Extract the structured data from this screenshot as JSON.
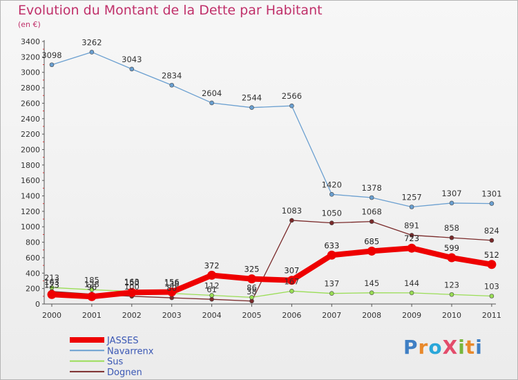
{
  "chart_data": {
    "type": "line",
    "title": "Evolution du Montant de la Dette par Habitant",
    "subtitle": "(en €)",
    "x": [
      "2000",
      "2001",
      "2002",
      "2003",
      "2004",
      "2005",
      "2006",
      "2007",
      "2008",
      "2009",
      "2010",
      "2011"
    ],
    "ylim": [
      0,
      3400
    ],
    "yticks": [
      0,
      200,
      400,
      600,
      800,
      1000,
      1200,
      1400,
      1600,
      1800,
      2000,
      2200,
      2400,
      2600,
      2800,
      3000,
      3200,
      3400
    ],
    "grid": false,
    "legend_position": "bottom-left",
    "series": [
      {
        "name": "JASSES",
        "color": "#ee0000",
        "values": [
          123,
          96,
          150,
          156,
          372,
          325,
          307,
          633,
          685,
          723,
          599,
          512
        ]
      },
      {
        "name": "Navarrenx",
        "color": "#6a9fd0",
        "values": [
          3098,
          3262,
          3043,
          2834,
          2604,
          2544,
          2566,
          1420,
          1378,
          1257,
          1307,
          1301
        ]
      },
      {
        "name": "Sus",
        "color": "#99dd55",
        "values": [
          213,
          185,
          163,
          138,
          112,
          86,
          167,
          137,
          145,
          144,
          123,
          103
        ]
      },
      {
        "name": "Dognen",
        "color": "#7a2a2a",
        "values": [
          163,
          128,
          100,
          80,
          61,
          38,
          1083,
          1050,
          1068,
          891,
          858,
          824
        ]
      }
    ]
  },
  "branding": {
    "logo_text": "ProXiti",
    "letters": [
      {
        "ch": "P",
        "color": "#3f7fc4"
      },
      {
        "ch": "r",
        "color": "#e8892b"
      },
      {
        "ch": "o",
        "color": "#2aa7d9"
      },
      {
        "ch": "X",
        "color": "#e34c6b"
      },
      {
        "ch": "i",
        "color": "#78b63c"
      },
      {
        "ch": "t",
        "color": "#e8892b"
      },
      {
        "ch": "i",
        "color": "#3f7fc4"
      }
    ]
  }
}
